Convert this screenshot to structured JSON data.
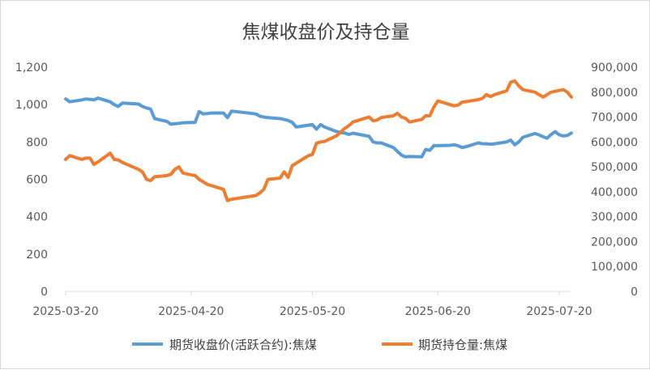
{
  "chart_data": {
    "type": "line",
    "title": "焦煤收盘价及持仓量",
    "y_left_ticks": [
      "0",
      "200",
      "400",
      "600",
      "800",
      "1,000",
      "1,200"
    ],
    "y_right_ticks": [
      "0",
      "100,000",
      "200,000",
      "300,000",
      "400,000",
      "500,000",
      "600,000",
      "700,000",
      "800,000",
      "900,000"
    ],
    "x_ticks": [
      "2025-03-20",
      "2025-04-20",
      "2025-05-20",
      "2025-06-20",
      "2025-07-20"
    ],
    "ylim_left": [
      0,
      1200
    ],
    "ylim_right": [
      0,
      900000
    ],
    "x_range": [
      "2025-03-20",
      "2025-07-23"
    ],
    "grid": false,
    "legend_position": "bottom",
    "colors": {
      "price": "#5b9bd5",
      "oi": "#ed7d31"
    },
    "series": [
      {
        "name": "期货收盘价(活跃合约):焦煤",
        "axis": "left",
        "points": [
          [
            "2025-03-20",
            1030
          ],
          [
            "2025-03-21",
            1015
          ],
          [
            "2025-03-24",
            1025
          ],
          [
            "2025-03-25",
            1030
          ],
          [
            "2025-03-26",
            1028
          ],
          [
            "2025-03-27",
            1025
          ],
          [
            "2025-03-28",
            1035
          ],
          [
            "2025-03-31",
            1015
          ],
          [
            "2025-04-01",
            1000
          ],
          [
            "2025-04-02",
            990
          ],
          [
            "2025-04-03",
            1008
          ],
          [
            "2025-04-07",
            1003
          ],
          [
            "2025-04-08",
            990
          ],
          [
            "2025-04-09",
            982
          ],
          [
            "2025-04-10",
            976
          ],
          [
            "2025-04-11",
            925
          ],
          [
            "2025-04-14",
            910
          ],
          [
            "2025-04-15",
            895
          ],
          [
            "2025-04-16",
            897
          ],
          [
            "2025-04-17",
            900
          ],
          [
            "2025-04-18",
            903
          ],
          [
            "2025-04-21",
            905
          ],
          [
            "2025-04-22",
            963
          ],
          [
            "2025-04-23",
            950
          ],
          [
            "2025-04-24",
            952
          ],
          [
            "2025-04-25",
            955
          ],
          [
            "2025-04-28",
            955
          ],
          [
            "2025-04-29",
            930
          ],
          [
            "2025-04-30",
            965
          ],
          [
            "2025-05-06",
            950
          ],
          [
            "2025-05-07",
            938
          ],
          [
            "2025-05-08",
            933
          ],
          [
            "2025-05-09",
            930
          ],
          [
            "2025-05-12",
            925
          ],
          [
            "2025-05-13",
            920
          ],
          [
            "2025-05-14",
            915
          ],
          [
            "2025-05-15",
            905
          ],
          [
            "2025-05-16",
            880
          ],
          [
            "2025-05-19",
            890
          ],
          [
            "2025-05-20",
            893
          ],
          [
            "2025-05-21",
            868
          ],
          [
            "2025-05-22",
            893
          ],
          [
            "2025-05-23",
            880
          ],
          [
            "2025-05-26",
            855
          ],
          [
            "2025-05-27",
            850
          ],
          [
            "2025-05-28",
            848
          ],
          [
            "2025-05-29",
            840
          ],
          [
            "2025-05-30",
            847
          ],
          [
            "2025-06-03",
            830
          ],
          [
            "2025-06-04",
            800
          ],
          [
            "2025-06-05",
            795
          ],
          [
            "2025-06-06",
            795
          ],
          [
            "2025-06-09",
            770
          ],
          [
            "2025-06-10",
            750
          ],
          [
            "2025-06-11",
            730
          ],
          [
            "2025-06-12",
            720
          ],
          [
            "2025-06-13",
            722
          ],
          [
            "2025-06-16",
            720
          ],
          [
            "2025-06-17",
            760
          ],
          [
            "2025-06-18",
            755
          ],
          [
            "2025-06-19",
            780
          ],
          [
            "2025-06-20",
            780
          ],
          [
            "2025-06-23",
            782
          ],
          [
            "2025-06-24",
            785
          ],
          [
            "2025-06-25",
            780
          ],
          [
            "2025-06-26",
            770
          ],
          [
            "2025-06-27",
            775
          ],
          [
            "2025-06-30",
            795
          ],
          [
            "2025-07-01",
            790
          ],
          [
            "2025-07-02",
            790
          ],
          [
            "2025-07-03",
            788
          ],
          [
            "2025-07-04",
            790
          ],
          [
            "2025-07-07",
            800
          ],
          [
            "2025-07-08",
            810
          ],
          [
            "2025-07-09",
            785
          ],
          [
            "2025-07-10",
            800
          ],
          [
            "2025-07-11",
            825
          ],
          [
            "2025-07-14",
            845
          ],
          [
            "2025-07-15",
            838
          ],
          [
            "2025-07-16",
            828
          ],
          [
            "2025-07-17",
            820
          ],
          [
            "2025-07-18",
            840
          ],
          [
            "2025-07-19",
            855
          ],
          [
            "2025-07-20",
            838
          ],
          [
            "2025-07-21",
            832
          ],
          [
            "2025-07-22",
            835
          ],
          [
            "2025-07-23",
            848
          ]
        ]
      },
      {
        "name": "期货持仓量:焦煤",
        "axis": "right",
        "points": [
          [
            "2025-03-20",
            530000
          ],
          [
            "2025-03-21",
            545000
          ],
          [
            "2025-03-24",
            530000
          ],
          [
            "2025-03-25",
            535000
          ],
          [
            "2025-03-26",
            535000
          ],
          [
            "2025-03-27",
            510000
          ],
          [
            "2025-03-28",
            520000
          ],
          [
            "2025-03-31",
            555000
          ],
          [
            "2025-04-01",
            530000
          ],
          [
            "2025-04-02",
            528000
          ],
          [
            "2025-04-03",
            518000
          ],
          [
            "2025-04-07",
            490000
          ],
          [
            "2025-04-08",
            480000
          ],
          [
            "2025-04-09",
            450000
          ],
          [
            "2025-04-10",
            445000
          ],
          [
            "2025-04-11",
            460000
          ],
          [
            "2025-04-14",
            465000
          ],
          [
            "2025-04-15",
            470000
          ],
          [
            "2025-04-16",
            490000
          ],
          [
            "2025-04-17",
            500000
          ],
          [
            "2025-04-18",
            475000
          ],
          [
            "2025-04-21",
            465000
          ],
          [
            "2025-04-22",
            450000
          ],
          [
            "2025-04-23",
            440000
          ],
          [
            "2025-04-24",
            430000
          ],
          [
            "2025-04-25",
            425000
          ],
          [
            "2025-04-28",
            410000
          ],
          [
            "2025-04-29",
            365000
          ],
          [
            "2025-04-30",
            370000
          ],
          [
            "2025-05-06",
            385000
          ],
          [
            "2025-05-07",
            395000
          ],
          [
            "2025-05-08",
            410000
          ],
          [
            "2025-05-09",
            450000
          ],
          [
            "2025-05-12",
            455000
          ],
          [
            "2025-05-13",
            480000
          ],
          [
            "2025-05-14",
            458000
          ],
          [
            "2025-05-15",
            505000
          ],
          [
            "2025-05-16",
            515000
          ],
          [
            "2025-05-19",
            545000
          ],
          [
            "2025-05-20",
            550000
          ],
          [
            "2025-05-21",
            595000
          ],
          [
            "2025-05-22",
            600000
          ],
          [
            "2025-05-23",
            602000
          ],
          [
            "2025-05-26",
            625000
          ],
          [
            "2025-05-27",
            640000
          ],
          [
            "2025-05-28",
            655000
          ],
          [
            "2025-05-29",
            665000
          ],
          [
            "2025-05-30",
            680000
          ],
          [
            "2025-06-03",
            700000
          ],
          [
            "2025-06-04",
            685000
          ],
          [
            "2025-06-05",
            688000
          ],
          [
            "2025-06-06",
            698000
          ],
          [
            "2025-06-09",
            705000
          ],
          [
            "2025-06-10",
            715000
          ],
          [
            "2025-06-11",
            700000
          ],
          [
            "2025-06-12",
            695000
          ],
          [
            "2025-06-13",
            680000
          ],
          [
            "2025-06-16",
            690000
          ],
          [
            "2025-06-17",
            705000
          ],
          [
            "2025-06-18",
            705000
          ],
          [
            "2025-06-19",
            740000
          ],
          [
            "2025-06-20",
            765000
          ],
          [
            "2025-06-23",
            750000
          ],
          [
            "2025-06-24",
            745000
          ],
          [
            "2025-06-25",
            748000
          ],
          [
            "2025-06-26",
            760000
          ],
          [
            "2025-06-27",
            762000
          ],
          [
            "2025-06-30",
            770000
          ],
          [
            "2025-07-01",
            775000
          ],
          [
            "2025-07-02",
            790000
          ],
          [
            "2025-07-03",
            782000
          ],
          [
            "2025-07-04",
            790000
          ],
          [
            "2025-07-07",
            805000
          ],
          [
            "2025-07-08",
            840000
          ],
          [
            "2025-07-09",
            845000
          ],
          [
            "2025-07-10",
            825000
          ],
          [
            "2025-07-11",
            810000
          ],
          [
            "2025-07-14",
            800000
          ],
          [
            "2025-07-15",
            790000
          ],
          [
            "2025-07-16",
            780000
          ],
          [
            "2025-07-17",
            790000
          ],
          [
            "2025-07-18",
            800000
          ],
          [
            "2025-07-21",
            810000
          ],
          [
            "2025-07-22",
            800000
          ],
          [
            "2025-07-23",
            780000
          ]
        ]
      }
    ]
  }
}
